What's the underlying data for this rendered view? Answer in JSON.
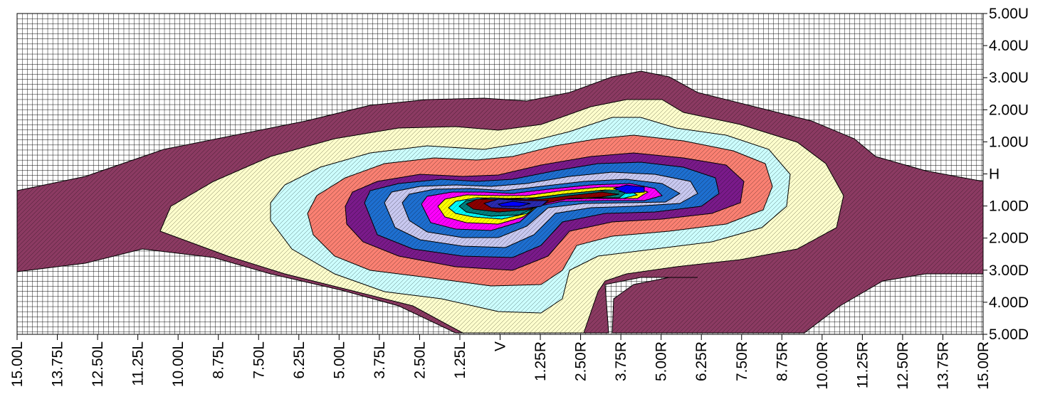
{
  "chart_data": {
    "type": "heatmap",
    "subtype": "filled-contour",
    "grid": true,
    "x_tick_labels": [
      "15.00L",
      "13.75L",
      "12.50L",
      "11.25L",
      "10.00L",
      "8.75L",
      "7.50L",
      "6.25L",
      "5.00L",
      "3.75L",
      "2.50L",
      "1.25L",
      "V",
      "1.25R",
      "2.50R",
      "3.75R",
      "5.00R",
      "6.25R",
      "7.50R",
      "8.75R",
      "10.00R",
      "11.25R",
      "12.50R",
      "13.75R",
      "15.00R"
    ],
    "y_tick_labels": [
      "5.00U",
      "4.00U",
      "3.00U",
      "2.00U",
      "1.00U",
      "H",
      "1.00D",
      "2.00D",
      "3.00D",
      "4.00D",
      "5.00D"
    ],
    "xlim": [
      -15,
      15
    ],
    "ylim": [
      -5,
      5
    ],
    "level_colors": [
      "#8B3A62",
      "#FFFFCC",
      "#CCFFFF",
      "#FA8072",
      "#7A1A8A",
      "#1E6FD0",
      "#C8C8F0",
      "#1E6FD0",
      "#FF00FF",
      "#FFFF00",
      "#00FFFF",
      "#008080",
      "#8B0000",
      "#2A2AB0",
      "#0000FF"
    ],
    "peak": {
      "x": 3.75,
      "y": -0.5
    },
    "secondary_peak": {
      "x": -1.5,
      "y": -1.0
    }
  }
}
